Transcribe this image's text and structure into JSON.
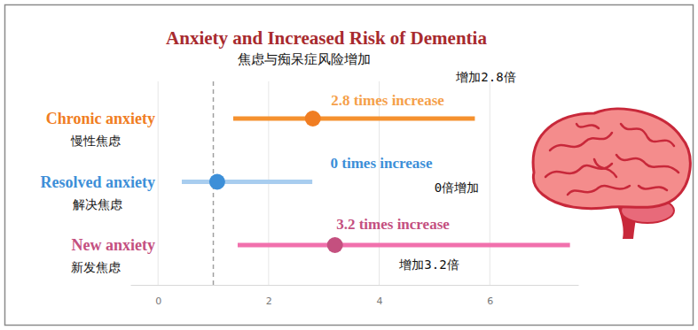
{
  "chart_data": {
    "type": "forest",
    "title": "Anxiety and Increased Risk of Dementia",
    "subtitle": "焦虑与痴呆症风险增加",
    "orientation": "horizontal",
    "categories": [
      "Chronic anxiety",
      "Resolved anxiety",
      "New anxiety"
    ],
    "categories_zh": [
      "慢性焦虑",
      "解决焦虑",
      "新发焦虑"
    ],
    "values": [
      2.8,
      1.07,
      3.2
    ],
    "lower": [
      1.36,
      0.43,
      1.44
    ],
    "upper": [
      5.73,
      2.79,
      7.45
    ],
    "colors": [
      "#f07d22",
      "#3d8fd8",
      "#c4507f"
    ],
    "ci_colors": [
      "#f5912f",
      "#a8cdef",
      "#f171ad"
    ],
    "annotations": [
      "2.8 times increase",
      "0 times increase",
      "3.2 times increase"
    ],
    "annotations_zh": [
      "增加2.8倍",
      "0倍增加",
      "增加3.2倍"
    ],
    "reference_line": 1,
    "xlim": [
      -0.5,
      7.6
    ],
    "xticks": [
      0,
      2,
      4,
      6
    ],
    "grid": true
  }
}
